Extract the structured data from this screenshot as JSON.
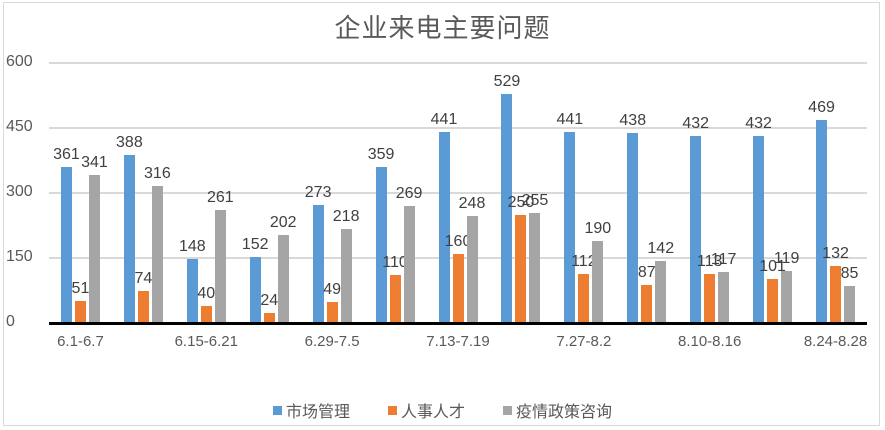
{
  "chart_data": {
    "type": "bar",
    "title": "企业来电主要问题",
    "xlabel": "",
    "ylabel": "",
    "ylim": [
      0,
      600
    ],
    "yticks": [
      0,
      150,
      300,
      450,
      600
    ],
    "grid": true,
    "legend_position": "bottom",
    "x_tick_labels_visible": [
      "6.1-6.7",
      "",
      "6.15-6.21",
      "",
      "6.29-7.5",
      "",
      "7.13-7.19",
      "",
      "7.27-8.2",
      "",
      "8.10-8.16",
      "",
      "8.24-8.28"
    ],
    "categories": [
      "6.1-6.7",
      "",
      "6.15-6.21",
      "",
      "6.29-7.5",
      "",
      "7.13-7.19",
      "",
      "7.27-8.2",
      "",
      "8.10-8.16",
      "",
      "8.24-8.28"
    ],
    "series": [
      {
        "name": "市场管理",
        "color": "#5b9bd5",
        "values": [
          361,
          388,
          148,
          152,
          273,
          359,
          441,
          529,
          441,
          438,
          432,
          432,
          469
        ]
      },
      {
        "name": "人事人才",
        "color": "#ed7d31",
        "values": [
          51,
          74,
          40,
          24,
          49,
          110,
          160,
          250,
          112,
          87,
          113,
          101,
          132
        ]
      },
      {
        "name": "疫情政策咨询",
        "color": "#a5a5a5",
        "values": [
          341,
          316,
          261,
          202,
          218,
          269,
          248,
          255,
          190,
          142,
          117,
          119,
          85
        ]
      }
    ]
  }
}
